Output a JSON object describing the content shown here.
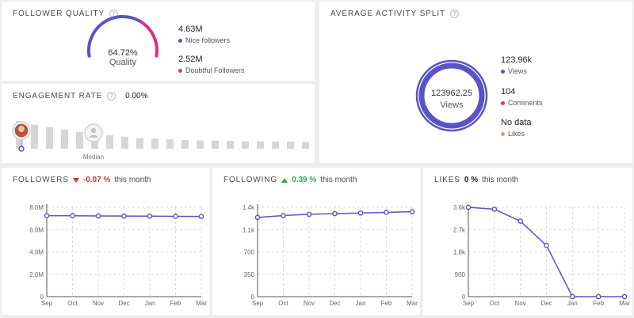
{
  "follower_quality": {
    "title": "FOLLOWER QUALITY",
    "gauge_percent": "64.72%",
    "gauge_label": "Quality",
    "quality_fraction": 0.6472,
    "nice_count": "4.63M",
    "nice_label": "Nice followers",
    "doubtful_count": "2.52M",
    "doubtful_label": "Doubtful Followers"
  },
  "engagement": {
    "title": "ENGAGEMENT RATE",
    "value": "0.00%",
    "median_label": "Median",
    "bars": [
      0.92,
      0.8,
      0.72,
      0.64,
      0.56,
      0.5,
      0.45,
      0.4,
      0.36,
      0.33,
      0.31,
      0.29,
      0.28,
      0.27,
      0.26,
      0.25,
      0.25,
      0.24,
      0.24,
      0.23
    ]
  },
  "activity": {
    "title": "AVERAGE ACTIVITY SPLIT",
    "center_value": "123962.25",
    "center_label": "Views",
    "views_value": "123.96k",
    "views_label": "Views",
    "comments_value": "104",
    "comments_label": "Comments",
    "likes_value": "No data",
    "likes_label": "Likes"
  },
  "colors": {
    "purple": "#5a52c8",
    "pink": "#d9317e",
    "orange": "#f0965a",
    "bar_gray": "#d6d6d6"
  },
  "followers_chart": {
    "title": "FOLLOWERS",
    "change": "-0.07 %",
    "suffix": "this month"
  },
  "following_chart": {
    "title": "FOLLOWING",
    "change": "0.39 %",
    "suffix": "this month"
  },
  "likes_chart": {
    "title": "LIKES",
    "change": "0 %",
    "suffix": "this month"
  },
  "chart_data": [
    {
      "type": "line",
      "title": "FOLLOWERS",
      "categories": [
        "Sep",
        "Oct",
        "Nov",
        "Dec",
        "Jan",
        "Feb",
        "Mar"
      ],
      "series": [
        {
          "values": [
            7.25,
            7.24,
            7.22,
            7.21,
            7.2,
            7.19,
            7.18
          ]
        }
      ],
      "yticks": [
        "0",
        "2.0M",
        "4.0M",
        "6.0M",
        "8.0M"
      ],
      "ylim": [
        0,
        8
      ],
      "grid": true
    },
    {
      "type": "line",
      "title": "FOLLOWING",
      "categories": [
        "Sep",
        "Oct",
        "Nov",
        "Dec",
        "Jan",
        "Feb",
        "Mar"
      ],
      "series": [
        {
          "values": [
            1.24,
            1.27,
            1.29,
            1.3,
            1.31,
            1.32,
            1.33
          ]
        }
      ],
      "yticks": [
        "0",
        "350",
        "700",
        "1.1k",
        "1.4k"
      ],
      "ylim": [
        0,
        1.4
      ],
      "grid": true
    },
    {
      "type": "line",
      "title": "LIKES",
      "categories": [
        "Sep",
        "Oct",
        "Nov",
        "Dec",
        "Jan",
        "Feb",
        "Mar"
      ],
      "series": [
        {
          "values": [
            3.6,
            3.52,
            3.04,
            2.06,
            0,
            0,
            0
          ]
        }
      ],
      "yticks": [
        "0",
        "900",
        "1.8k",
        "2.7k",
        "3.6k"
      ],
      "ylim": [
        0,
        3.6
      ],
      "grid": true
    }
  ]
}
